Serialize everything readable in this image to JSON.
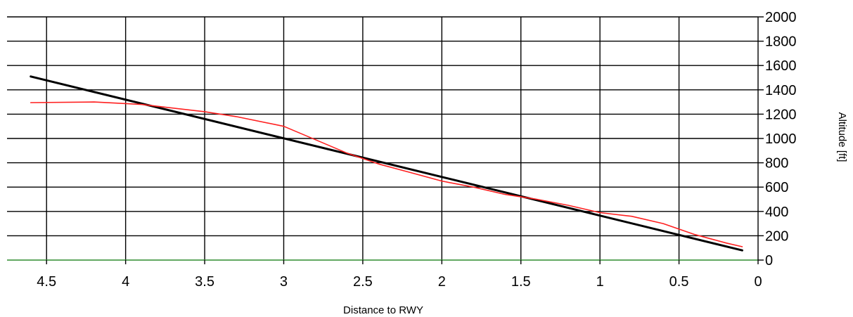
{
  "chart_data": {
    "type": "line",
    "title": "",
    "xlabel": "Distance to RWY",
    "ylabel": "Altitude [ft]",
    "xlim": [
      4.75,
      0
    ],
    "x_reversed": true,
    "ylim": [
      0,
      2000
    ],
    "x_ticks": [
      4.5,
      4,
      3.5,
      3,
      2.5,
      2,
      1.5,
      1,
      0.5,
      0
    ],
    "x_tick_labels": [
      "4.5",
      "4",
      "3.5",
      "3",
      "2.5",
      "2",
      "1.5",
      "1",
      "0.5",
      "0"
    ],
    "y_ticks": [
      0,
      200,
      400,
      600,
      800,
      1000,
      1200,
      1400,
      1600,
      1800,
      2000
    ],
    "y_tick_labels": [
      "0",
      "200",
      "400",
      "600",
      "800",
      "1000",
      "1200",
      "1400",
      "1600",
      "1800",
      "2000"
    ],
    "y_axis_position": "right",
    "grid": true,
    "series": [
      {
        "color": "#000000",
        "points": [
          [
            4.6,
            1510
          ],
          [
            0.1,
            80
          ]
        ]
      },
      {
        "color": "#ff2020",
        "points": [
          [
            4.6,
            1295
          ],
          [
            4.2,
            1300
          ],
          [
            3.9,
            1280
          ],
          [
            3.5,
            1220
          ],
          [
            3.3,
            1180
          ],
          [
            3.0,
            1100
          ],
          [
            2.8,
            990
          ],
          [
            2.6,
            880
          ],
          [
            2.4,
            790
          ],
          [
            2.2,
            720
          ],
          [
            2.0,
            650
          ],
          [
            1.8,
            600
          ],
          [
            1.6,
            540
          ],
          [
            1.4,
            500
          ],
          [
            1.2,
            450
          ],
          [
            1.0,
            390
          ],
          [
            0.8,
            360
          ],
          [
            0.6,
            300
          ],
          [
            0.4,
            210
          ],
          [
            0.2,
            140
          ],
          [
            0.1,
            110
          ]
        ]
      }
    ],
    "baseline_color": "#2e8b2e"
  }
}
